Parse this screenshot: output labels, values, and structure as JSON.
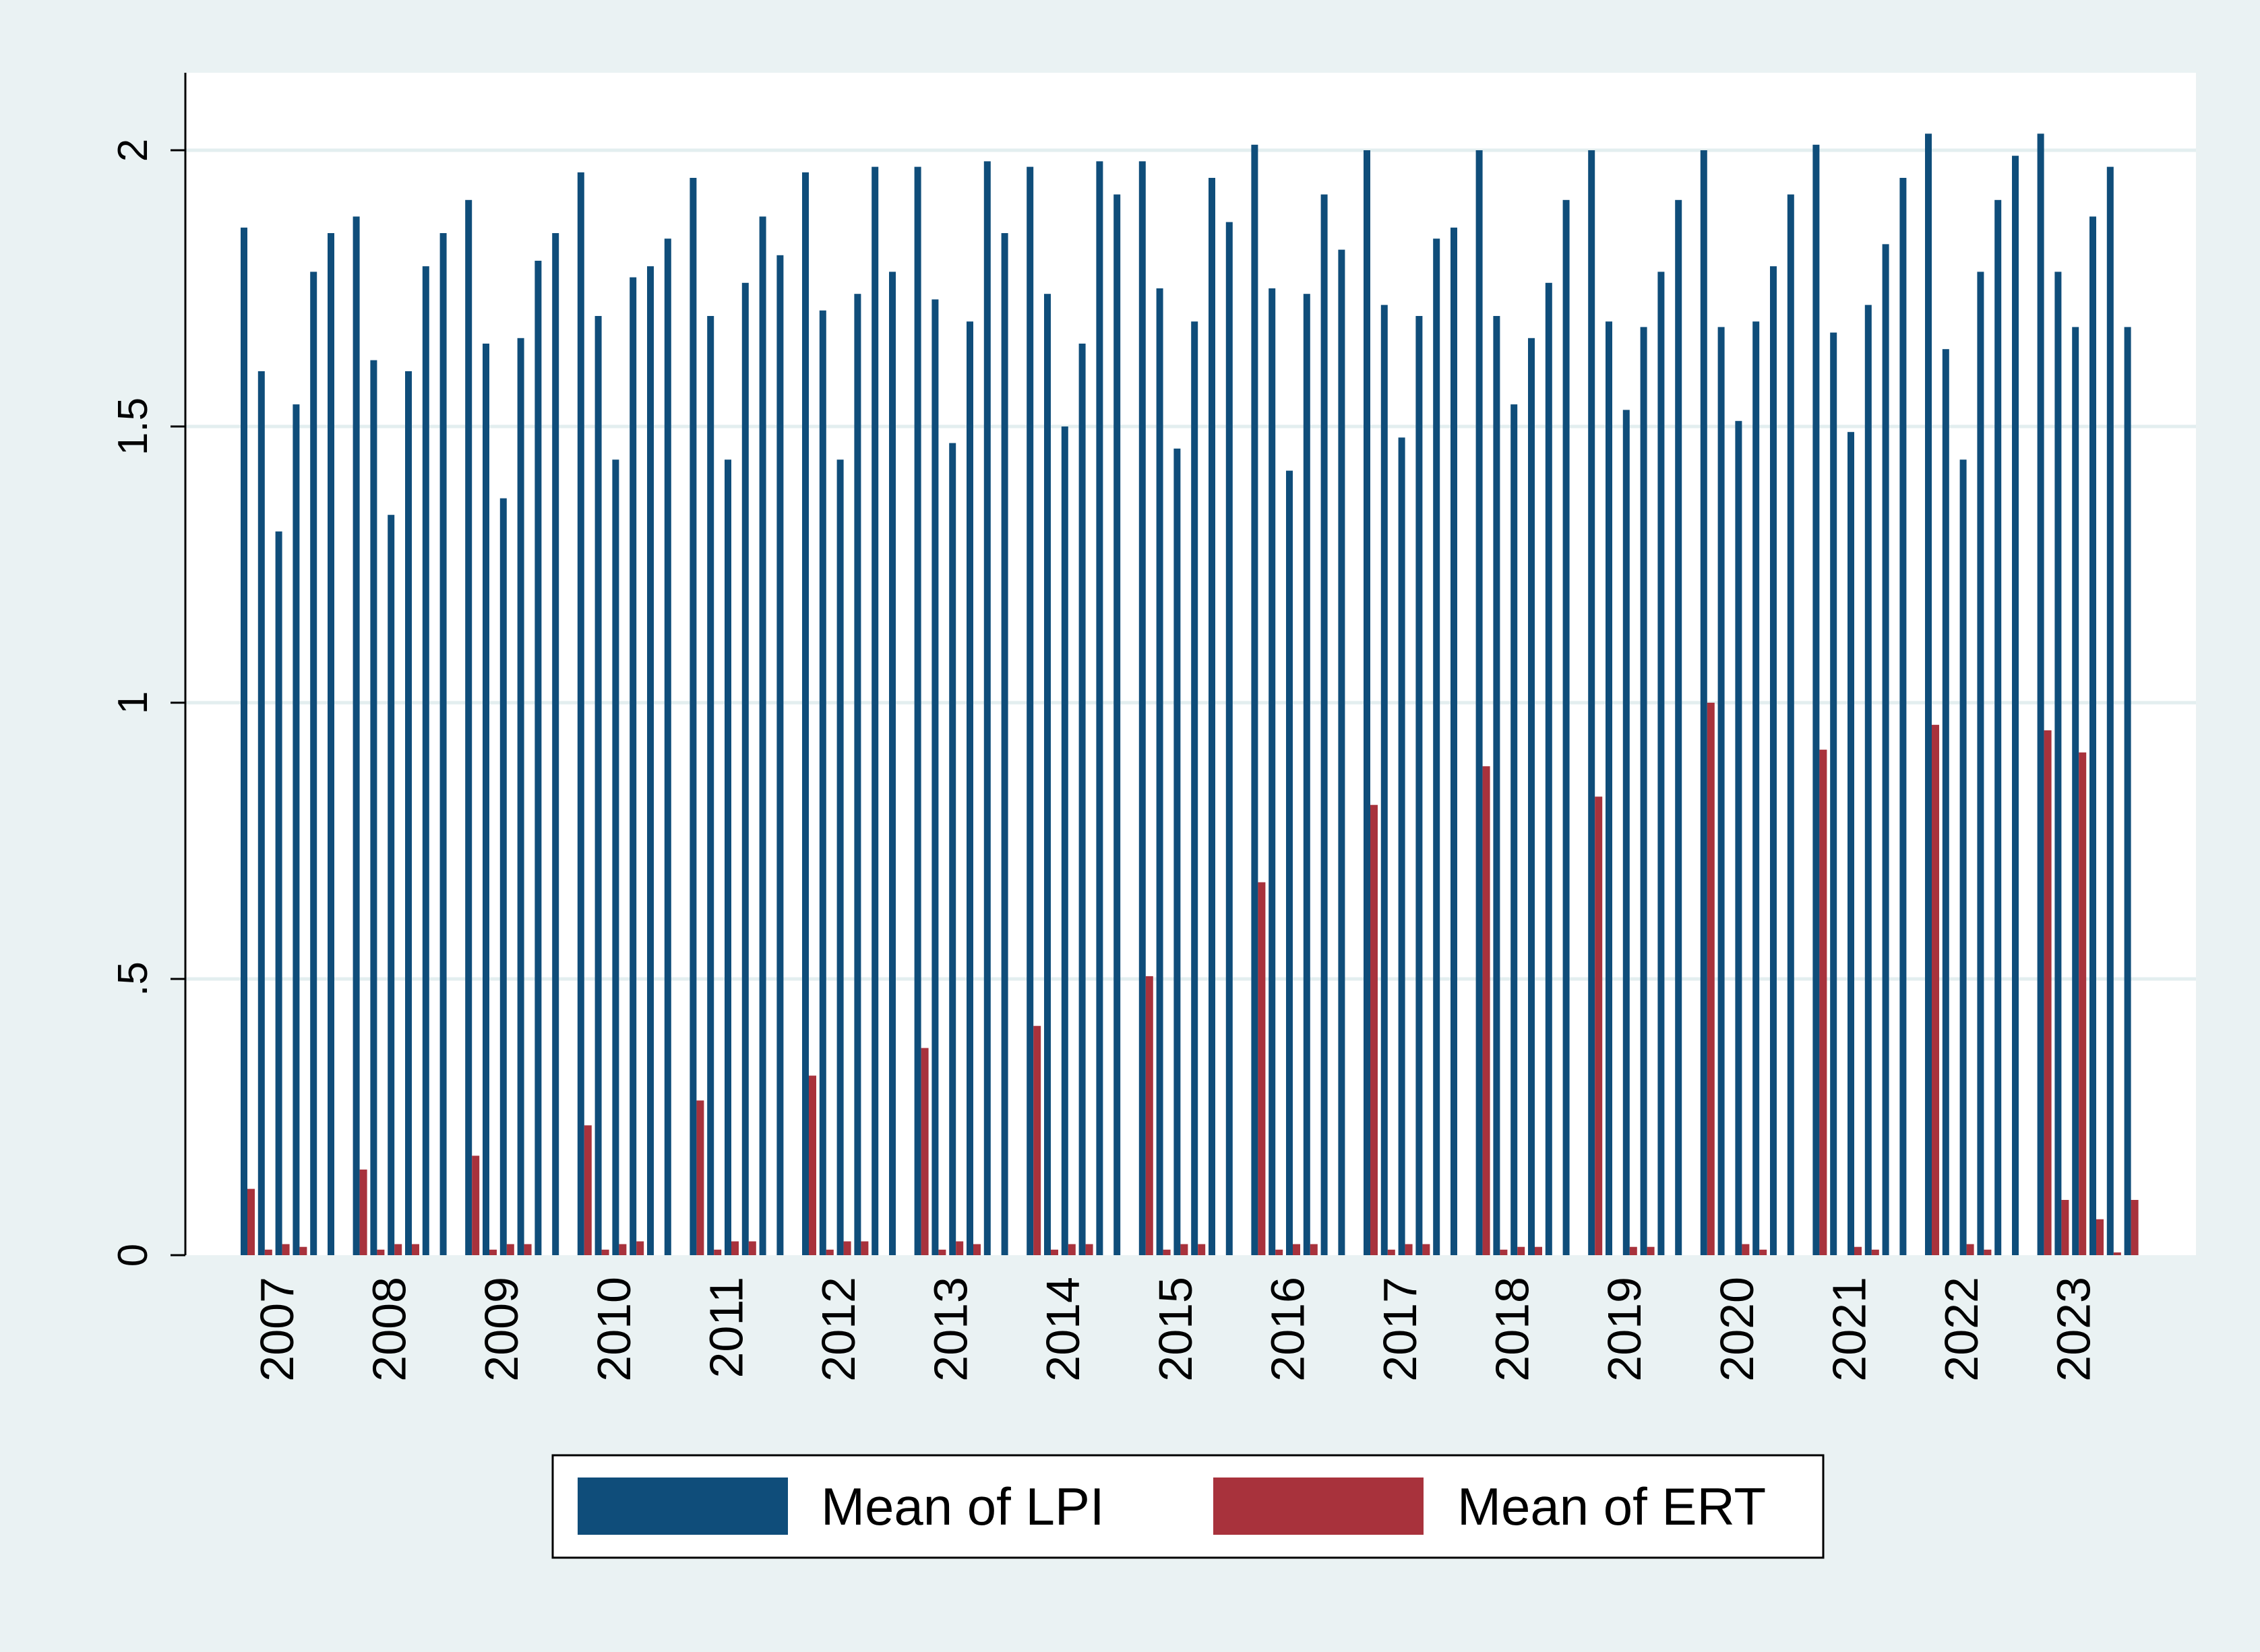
{
  "chart_data": {
    "type": "bar",
    "title": "",
    "xlabel": "",
    "ylabel": "",
    "ylim": [
      0,
      2.2
    ],
    "yticks": [
      0,
      0.5,
      1,
      1.5,
      2
    ],
    "ytick_labels": [
      "0",
      ".5",
      "1",
      "1.5",
      "2"
    ],
    "grid": true,
    "legend_position": "bottom",
    "groups": [
      "2007",
      "2008",
      "2009",
      "2010",
      "2011",
      "2012",
      "2013",
      "2014",
      "2015",
      "2016",
      "2017",
      "2018",
      "2019",
      "2020",
      "2021",
      "2022",
      "2023"
    ],
    "bars_per_group": 6,
    "colors": {
      "lpi": "#0f4d7a",
      "ert": "#a8323c",
      "background": "#eaf2f3",
      "plot_bg": "#ffffff",
      "grid": "#e3eeef"
    },
    "series": [
      {
        "name": "Mean of LPI",
        "values": [
          [
            1.86,
            1.6,
            1.31,
            1.54,
            1.78,
            1.85
          ],
          [
            1.88,
            1.62,
            1.34,
            1.6,
            1.79,
            1.85
          ],
          [
            1.91,
            1.65,
            1.37,
            1.66,
            1.8,
            1.85
          ],
          [
            1.96,
            1.7,
            1.44,
            1.77,
            1.79,
            1.84
          ],
          [
            1.95,
            1.7,
            1.44,
            1.76,
            1.88,
            1.81
          ],
          [
            1.96,
            1.71,
            1.44,
            1.74,
            1.97,
            1.78
          ],
          [
            1.97,
            1.73,
            1.47,
            1.69,
            1.98,
            1.85
          ],
          [
            1.97,
            1.74,
            1.5,
            1.65,
            1.98,
            1.92
          ],
          [
            1.98,
            1.75,
            1.46,
            1.69,
            1.95,
            1.87
          ],
          [
            2.01,
            1.75,
            1.42,
            1.74,
            1.92,
            1.82
          ],
          [
            2.0,
            1.72,
            1.48,
            1.7,
            1.84,
            1.86
          ],
          [
            2.0,
            1.7,
            1.54,
            1.66,
            1.76,
            1.91
          ],
          [
            2.0,
            1.69,
            1.53,
            1.68,
            1.78,
            1.91
          ],
          [
            2.0,
            1.68,
            1.51,
            1.69,
            1.79,
            1.92
          ],
          [
            2.01,
            1.67,
            1.49,
            1.72,
            1.83,
            1.95
          ],
          [
            2.03,
            1.64,
            1.44,
            1.78,
            1.91,
            1.99
          ],
          [
            2.03,
            1.78,
            1.68,
            1.88,
            1.97,
            1.68
          ]
        ]
      },
      {
        "name": "Mean of ERT",
        "values": [
          [
            0.12,
            0.01,
            0.02,
            0.015,
            0,
            0
          ],
          [
            0.155,
            0.01,
            0.02,
            0.02,
            0,
            0
          ],
          [
            0.18,
            0.01,
            0.02,
            0.02,
            0,
            0
          ],
          [
            0.235,
            0.01,
            0.02,
            0.025,
            0,
            0
          ],
          [
            0.28,
            0.01,
            0.025,
            0.025,
            0,
            0
          ],
          [
            0.325,
            0.01,
            0.025,
            0.025,
            0,
            0
          ],
          [
            0.375,
            0.01,
            0.025,
            0.02,
            0,
            0
          ],
          [
            0.415,
            0.01,
            0.02,
            0.02,
            0,
            0
          ],
          [
            0.505,
            0.01,
            0.02,
            0.02,
            0,
            0
          ],
          [
            0.675,
            0.01,
            0.02,
            0.02,
            0,
            0
          ],
          [
            0.815,
            0.01,
            0.02,
            0.02,
            0,
            0
          ],
          [
            0.885,
            0.01,
            0.015,
            0.015,
            0,
            0
          ],
          [
            0.83,
            0,
            0.015,
            0.015,
            0,
            0
          ],
          [
            1.0,
            0,
            0.02,
            0.01,
            0,
            0
          ],
          [
            0.915,
            0,
            0.015,
            0.01,
            0,
            0
          ],
          [
            0.96,
            0,
            0.02,
            0.01,
            0,
            0
          ],
          [
            0.95,
            0.1,
            0.91,
            0.065,
            0.005,
            0.1
          ]
        ]
      }
    ]
  }
}
